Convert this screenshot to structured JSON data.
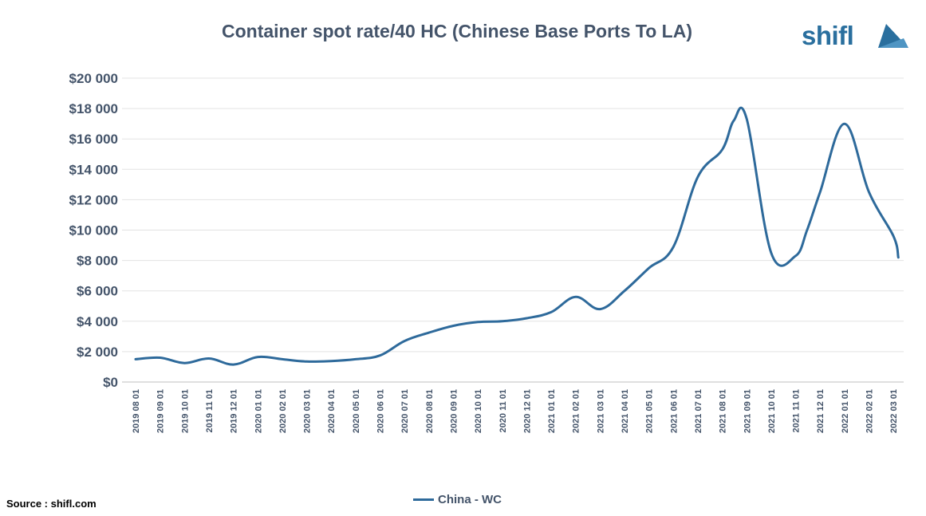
{
  "chart_data": {
    "type": "line",
    "title": "Container spot rate/40 HC (Chinese Base Ports To LA)",
    "xlabel": "",
    "ylabel": "",
    "ylim": [
      0,
      20000
    ],
    "y_ticks": [
      {
        "value": 0,
        "label": "$0"
      },
      {
        "value": 2000,
        "label": "$2 000"
      },
      {
        "value": 4000,
        "label": "$4 000"
      },
      {
        "value": 6000,
        "label": "$6 000"
      },
      {
        "value": 8000,
        "label": "$8 000"
      },
      {
        "value": 10000,
        "label": "$10 000"
      },
      {
        "value": 12000,
        "label": "$12 000"
      },
      {
        "value": 14000,
        "label": "$14 000"
      },
      {
        "value": 16000,
        "label": "$16 000"
      },
      {
        "value": 18000,
        "label": "$18 000"
      },
      {
        "value": 20000,
        "label": "$20 000"
      }
    ],
    "categories": [
      "2019 08 01",
      "2019 09 01",
      "2019 10 01",
      "2019 11 01",
      "2019 12 01",
      "2020 01 01",
      "2020 02 01",
      "2020 03 01",
      "2020 04 01",
      "2020 05 01",
      "2020 06 01",
      "2020 07 01",
      "2020 08 01",
      "2020 09 01",
      "2020 10 01",
      "2020 11 01",
      "2020 12 01",
      "2021 01 01",
      "2021 02 01",
      "2021 03 01",
      "2021 04 01",
      "2021 05 01",
      "2021 06 01",
      "2021 07 01",
      "2021 08 01",
      "2021 09 01",
      "2021 10 01",
      "2021 11 01",
      "2021 12 01",
      "2022 01 01",
      "2022 02 01",
      "2022 03 01"
    ],
    "grid": true,
    "legend": "bottom",
    "series": [
      {
        "name": "China - WC",
        "color": "#2e6a9b",
        "x": [
          "2019 08 01",
          "2019 09 01",
          "2019 10 01",
          "2019 11 01",
          "2019 12 01",
          "2020 01 01",
          "2020 02 01",
          "2020 03 01",
          "2020 04 01",
          "2020 05 01",
          "2020 06 01",
          "2020 07 01",
          "2020 08 01",
          "2020 09 01",
          "2020 10 01",
          "2020 11 01",
          "2020 12 01",
          "2021 01 01",
          "2021 02 01",
          "2021 03 01",
          "2021 04 01",
          "2021 05 01",
          "2021 06 01",
          "2021 07 01",
          "2021 08 01",
          "2021 08 15",
          "2021 09 01",
          "2021 10 01",
          "2021 11 01",
          "2021 11 15",
          "2021 12 01",
          "2022 01 01",
          "2022 02 01",
          "2022 03 01",
          "2022 03 07"
        ],
        "values": [
          1500,
          1600,
          1250,
          1550,
          1150,
          1650,
          1500,
          1350,
          1380,
          1500,
          1750,
          2700,
          3250,
          3700,
          3950,
          4000,
          4200,
          4600,
          5600,
          4800,
          6000,
          7500,
          8900,
          13500,
          15300,
          17200,
          17300,
          8500,
          8300,
          10000,
          12500,
          17000,
          12500,
          9600,
          8200
        ]
      }
    ]
  },
  "logo": {
    "text": "shifl",
    "mark_icon": "sail-icon",
    "color": "#2a6f9e"
  },
  "source_note": "Source : shifl.com",
  "legend_label": "China - WC"
}
